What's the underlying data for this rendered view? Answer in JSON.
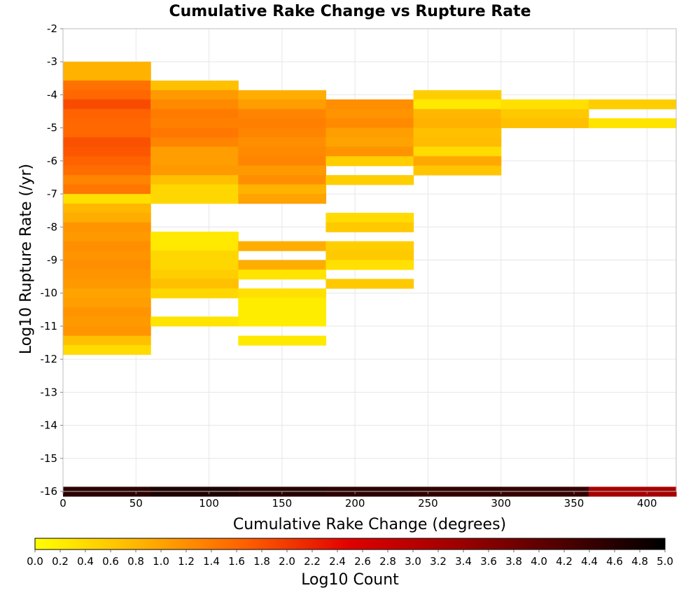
{
  "chart_data": {
    "type": "heatmap",
    "title": "Cumulative Rake Change vs Rupture Rate",
    "xlabel": "Cumulative Rake Change (degrees)",
    "ylabel": "Log10 Rupture Rate (/yr)",
    "xlim": [
      0,
      420
    ],
    "ylim": [
      -16,
      -2
    ],
    "x_ticks": [
      0,
      50,
      100,
      150,
      200,
      250,
      300,
      350,
      400
    ],
    "y_ticks": [
      -2,
      -3,
      -4,
      -5,
      -6,
      -7,
      -8,
      -9,
      -10,
      -11,
      -12,
      -13,
      -14,
      -15,
      -16
    ],
    "grid": true,
    "x_bin_width": 60,
    "y_bin_height": 0.2857,
    "colorbar": {
      "label": "Log10 Count",
      "min": 0.0,
      "max": 5.0,
      "ticks": [
        "0.0",
        "0.2",
        "0.4",
        "0.6",
        "0.8",
        "1.0",
        "1.2",
        "1.4",
        "1.6",
        "1.8",
        "2.0",
        "2.2",
        "2.4",
        "2.6",
        "2.8",
        "3.0",
        "3.2",
        "3.4",
        "3.6",
        "3.8",
        "4.0",
        "4.2",
        "4.4",
        "4.6",
        "4.8",
        "5.0"
      ],
      "colors": [
        "#ffff00",
        "#ffb400",
        "#ff6000",
        "#e00000",
        "#a00000",
        "#500000",
        "#000000"
      ]
    },
    "cells": [
      {
        "x": 0,
        "y": -3.0,
        "v": 0.85
      },
      {
        "x": 0,
        "y": -3.29,
        "v": 0.85
      },
      {
        "x": 0,
        "y": -3.57,
        "v": 1.5
      },
      {
        "x": 0,
        "y": -3.86,
        "v": 1.6
      },
      {
        "x": 0,
        "y": -4.14,
        "v": 1.85
      },
      {
        "x": 0,
        "y": -4.43,
        "v": 1.65
      },
      {
        "x": 0,
        "y": -4.71,
        "v": 1.6
      },
      {
        "x": 0,
        "y": -5.0,
        "v": 1.6
      },
      {
        "x": 0,
        "y": -5.29,
        "v": 1.8
      },
      {
        "x": 0,
        "y": -5.57,
        "v": 1.75
      },
      {
        "x": 0,
        "y": -5.86,
        "v": 1.65
      },
      {
        "x": 0,
        "y": -6.14,
        "v": 1.55
      },
      {
        "x": 0,
        "y": -6.43,
        "v": 1.3
      },
      {
        "x": 0,
        "y": -6.71,
        "v": 1.45
      },
      {
        "x": 0,
        "y": -7.0,
        "v": 0.35
      },
      {
        "x": 0,
        "y": -7.29,
        "v": 0.8
      },
      {
        "x": 0,
        "y": -7.57,
        "v": 0.9
      },
      {
        "x": 0,
        "y": -7.86,
        "v": 1.15
      },
      {
        "x": 0,
        "y": -8.14,
        "v": 1.1
      },
      {
        "x": 0,
        "y": -8.43,
        "v": 1.2
      },
      {
        "x": 0,
        "y": -8.71,
        "v": 1.15
      },
      {
        "x": 0,
        "y": -9.0,
        "v": 1.2
      },
      {
        "x": 0,
        "y": -9.29,
        "v": 1.15
      },
      {
        "x": 0,
        "y": -9.57,
        "v": 1.1
      },
      {
        "x": 0,
        "y": -9.86,
        "v": 1.0
      },
      {
        "x": 0,
        "y": -10.14,
        "v": 1.05
      },
      {
        "x": 0,
        "y": -10.43,
        "v": 1.15
      },
      {
        "x": 0,
        "y": -10.71,
        "v": 1.1
      },
      {
        "x": 0,
        "y": -11.0,
        "v": 1.15
      },
      {
        "x": 0,
        "y": -11.29,
        "v": 0.7
      },
      {
        "x": 0,
        "y": -11.57,
        "v": 0.4
      },
      {
        "x": 60,
        "y": -3.57,
        "v": 0.7
      },
      {
        "x": 60,
        "y": -3.86,
        "v": 1.1
      },
      {
        "x": 60,
        "y": -4.14,
        "v": 1.25
      },
      {
        "x": 60,
        "y": -4.43,
        "v": 1.4
      },
      {
        "x": 60,
        "y": -4.71,
        "v": 1.35
      },
      {
        "x": 60,
        "y": -5.0,
        "v": 1.45
      },
      {
        "x": 60,
        "y": -5.29,
        "v": 1.3
      },
      {
        "x": 60,
        "y": -5.57,
        "v": 1.05
      },
      {
        "x": 60,
        "y": -5.86,
        "v": 1.05
      },
      {
        "x": 60,
        "y": -6.14,
        "v": 1.1
      },
      {
        "x": 60,
        "y": -6.43,
        "v": 0.7
      },
      {
        "x": 60,
        "y": -6.71,
        "v": 0.45
      },
      {
        "x": 60,
        "y": -7.0,
        "v": 0.45
      },
      {
        "x": 60,
        "y": -8.14,
        "v": 0.25
      },
      {
        "x": 60,
        "y": -8.43,
        "v": 0.25
      },
      {
        "x": 60,
        "y": -8.71,
        "v": 0.45
      },
      {
        "x": 60,
        "y": -9.0,
        "v": 0.45
      },
      {
        "x": 60,
        "y": -9.29,
        "v": 0.55
      },
      {
        "x": 60,
        "y": -9.57,
        "v": 0.7
      },
      {
        "x": 60,
        "y": -9.86,
        "v": 0.45
      },
      {
        "x": 60,
        "y": -10.71,
        "v": 0.3
      },
      {
        "x": 120,
        "y": -3.86,
        "v": 0.9
      },
      {
        "x": 120,
        "y": -4.14,
        "v": 1.05
      },
      {
        "x": 120,
        "y": -4.43,
        "v": 1.3
      },
      {
        "x": 120,
        "y": -4.71,
        "v": 1.35
      },
      {
        "x": 120,
        "y": -5.0,
        "v": 1.3
      },
      {
        "x": 120,
        "y": -5.29,
        "v": 1.2
      },
      {
        "x": 120,
        "y": -5.57,
        "v": 1.25
      },
      {
        "x": 120,
        "y": -5.86,
        "v": 1.3
      },
      {
        "x": 120,
        "y": -6.14,
        "v": 1.1
      },
      {
        "x": 120,
        "y": -6.43,
        "v": 1.2
      },
      {
        "x": 120,
        "y": -6.71,
        "v": 0.85
      },
      {
        "x": 120,
        "y": -7.0,
        "v": 1.0
      },
      {
        "x": 120,
        "y": -8.43,
        "v": 0.9
      },
      {
        "x": 120,
        "y": -9.0,
        "v": 0.9
      },
      {
        "x": 120,
        "y": -9.29,
        "v": 0.3
      },
      {
        "x": 120,
        "y": -9.86,
        "v": 0.35
      },
      {
        "x": 120,
        "y": -10.14,
        "v": 0.2
      },
      {
        "x": 120,
        "y": -10.43,
        "v": 0.2
      },
      {
        "x": 120,
        "y": -10.71,
        "v": 0.2
      },
      {
        "x": 120,
        "y": -11.29,
        "v": 0.25
      },
      {
        "x": 180,
        "y": -4.14,
        "v": 1.2
      },
      {
        "x": 180,
        "y": -4.43,
        "v": 1.15
      },
      {
        "x": 180,
        "y": -4.71,
        "v": 1.25
      },
      {
        "x": 180,
        "y": -5.0,
        "v": 1.05
      },
      {
        "x": 180,
        "y": -5.29,
        "v": 1.0
      },
      {
        "x": 180,
        "y": -5.57,
        "v": 1.15
      },
      {
        "x": 180,
        "y": -5.86,
        "v": 0.55
      },
      {
        "x": 180,
        "y": -6.43,
        "v": 0.55
      },
      {
        "x": 180,
        "y": -7.57,
        "v": 0.4
      },
      {
        "x": 180,
        "y": -7.86,
        "v": 0.6
      },
      {
        "x": 180,
        "y": -8.43,
        "v": 0.55
      },
      {
        "x": 180,
        "y": -8.71,
        "v": 0.6
      },
      {
        "x": 180,
        "y": -9.0,
        "v": 0.35
      },
      {
        "x": 180,
        "y": -9.57,
        "v": 0.6
      },
      {
        "x": 240,
        "y": -3.86,
        "v": 0.55
      },
      {
        "x": 240,
        "y": -4.14,
        "v": 0.25
      },
      {
        "x": 240,
        "y": -4.43,
        "v": 0.8
      },
      {
        "x": 240,
        "y": -4.71,
        "v": 0.85
      },
      {
        "x": 240,
        "y": -5.0,
        "v": 0.7
      },
      {
        "x": 240,
        "y": -5.29,
        "v": 0.75
      },
      {
        "x": 240,
        "y": -5.57,
        "v": 0.4
      },
      {
        "x": 240,
        "y": -5.86,
        "v": 0.95
      },
      {
        "x": 240,
        "y": -6.14,
        "v": 0.65
      },
      {
        "x": 300,
        "y": -4.14,
        "v": 0.35
      },
      {
        "x": 300,
        "y": -4.43,
        "v": 0.6
      },
      {
        "x": 300,
        "y": -4.71,
        "v": 0.7
      },
      {
        "x": 360,
        "y": -4.14,
        "v": 0.55
      },
      {
        "x": 360,
        "y": -4.71,
        "v": 0.3
      },
      {
        "x": 0,
        "y": -15.86,
        "v": 4.55
      },
      {
        "x": 60,
        "y": -15.86,
        "v": 4.7
      },
      {
        "x": 120,
        "y": -15.86,
        "v": 4.6
      },
      {
        "x": 180,
        "y": -15.86,
        "v": 4.55
      },
      {
        "x": 240,
        "y": -15.86,
        "v": 4.5
      },
      {
        "x": 300,
        "y": -15.86,
        "v": 4.45
      },
      {
        "x": 360,
        "y": -15.86,
        "v": 3.25
      }
    ]
  }
}
